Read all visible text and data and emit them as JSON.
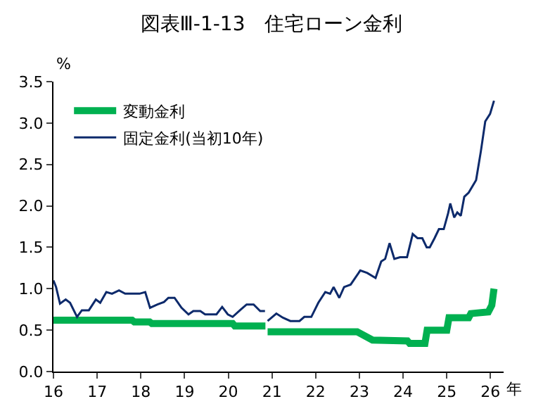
{
  "chart_data": {
    "type": "line",
    "title": "図表Ⅲ-1-13　住宅ローン金利",
    "ylabel": "%",
    "xlabel": "年",
    "series": [
      {
        "name": "変動金利",
        "color": "#00b050",
        "x": [
          16,
          17.8,
          17.85,
          18.2,
          18.25,
          20.1,
          20.15,
          20.85,
          20.87,
          20.9,
          22.95,
          23.3,
          24.1,
          24.15,
          24.5,
          24.55,
          25.0,
          25.05,
          25.5,
          25.55,
          25.95,
          26.03,
          26.08
        ],
        "values": [
          0.62,
          0.62,
          0.6,
          0.6,
          0.58,
          0.58,
          0.55,
          0.55,
          null,
          0.48,
          0.48,
          0.38,
          0.37,
          0.34,
          0.34,
          0.5,
          0.5,
          0.65,
          0.65,
          0.7,
          0.72,
          0.8,
          1.0
        ]
      },
      {
        "name": "固定金利(当初10年)",
        "color": "#0d2a6b",
        "x": [
          16.0,
          16.06,
          16.15,
          16.28,
          16.38,
          16.54,
          16.65,
          16.81,
          16.97,
          17.07,
          17.21,
          17.34,
          17.5,
          17.64,
          17.97,
          18.1,
          18.21,
          18.38,
          18.53,
          18.63,
          18.77,
          18.93,
          19.09,
          19.2,
          19.36,
          19.47,
          19.73,
          19.86,
          19.99,
          20.1,
          20.29,
          20.42,
          20.58,
          20.73,
          20.84,
          20.87,
          20.9,
          21.1,
          21.25,
          21.42,
          21.63,
          21.74,
          21.9,
          22.06,
          22.22,
          22.33,
          22.41,
          22.54,
          22.65,
          22.8,
          23.02,
          23.18,
          23.37,
          23.5,
          23.59,
          23.69,
          23.8,
          23.93,
          24.09,
          24.22,
          24.33,
          24.44,
          24.54,
          24.61,
          24.72,
          24.82,
          24.93,
          25.03,
          25.08,
          25.17,
          25.24,
          25.32,
          25.4,
          25.5,
          25.67,
          25.78,
          25.88,
          25.99,
          26.08
        ],
        "values": [
          1.1,
          1.02,
          0.82,
          0.87,
          0.83,
          0.66,
          0.74,
          0.74,
          0.87,
          0.83,
          0.96,
          0.94,
          0.98,
          0.94,
          0.94,
          0.96,
          0.77,
          0.81,
          0.84,
          0.89,
          0.89,
          0.77,
          0.69,
          0.73,
          0.73,
          0.69,
          0.69,
          0.78,
          0.69,
          0.66,
          0.75,
          0.81,
          0.81,
          0.73,
          0.73,
          null,
          0.61,
          0.7,
          0.65,
          0.61,
          0.61,
          0.66,
          0.66,
          0.83,
          0.96,
          0.94,
          1.02,
          0.89,
          1.02,
          1.05,
          1.22,
          1.19,
          1.13,
          1.33,
          1.36,
          1.55,
          1.36,
          1.38,
          1.38,
          1.66,
          1.61,
          1.61,
          1.5,
          1.5,
          1.61,
          1.72,
          1.72,
          1.91,
          2.03,
          1.86,
          1.92,
          1.88,
          2.11,
          2.16,
          2.31,
          2.66,
          3.02,
          3.11,
          3.27
        ]
      }
    ],
    "xlim": [
      16,
      26.3
    ],
    "xticks": [
      16,
      17,
      18,
      19,
      20,
      21,
      22,
      23,
      24,
      25,
      26
    ],
    "ylim": [
      0,
      3.5
    ],
    "yticks": [
      {
        "value": 0,
        "label": "0.0"
      },
      {
        "value": 0.5,
        "label": "0.5"
      },
      {
        "value": 1,
        "label": "1.0"
      },
      {
        "value": 1.5,
        "label": "1.5"
      },
      {
        "value": 2,
        "label": "2.0"
      },
      {
        "value": 2.5,
        "label": "2.5"
      },
      {
        "value": 3,
        "label": "3.0"
      },
      {
        "value": 3.5,
        "label": "3.5"
      }
    ],
    "legend": "top left"
  }
}
